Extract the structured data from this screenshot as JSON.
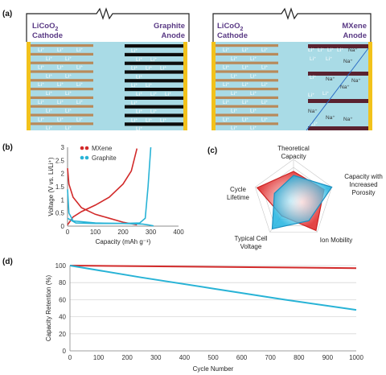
{
  "panels": {
    "a": "(a)",
    "b": "(b)",
    "c": "(c)",
    "d": "(d)"
  },
  "cell_left": {
    "cathode": [
      "LiCoO",
      "2",
      "Cathode"
    ],
    "anode": [
      "Graphite",
      "Anode"
    ]
  },
  "cell_right": {
    "cathode": [
      "LiCoO",
      "2",
      "Cathode"
    ],
    "anode": [
      "MXene",
      "Anode"
    ]
  },
  "ion_labels": {
    "li": "Li⁺",
    "na": "Na⁺"
  },
  "colors": {
    "electrolyte": "#a9dbe6",
    "cathode_layer": "#b88a5a",
    "collector": "#f2c21b",
    "graphite_layer": "#0d0d0d",
    "mxene_layer": "#5a2230",
    "mxene_red": "#d22a2a",
    "graphite_blue": "#28b3d6"
  },
  "chart_b": {
    "type": "line",
    "ylabel": "Voltage (V vs. Li/Li⁺)",
    "xlabel": "Capacity (mAh g⁻¹)",
    "xticks": [
      "0",
      "100",
      "200",
      "300",
      "400"
    ],
    "yticks": [
      "0",
      "0.5",
      "1",
      "1.5",
      "2",
      "2.5",
      "3"
    ],
    "xlim": [
      0,
      400
    ],
    "ylim": [
      0,
      3
    ],
    "legend": [
      {
        "name": "MXene",
        "color": "#d22a2a"
      },
      {
        "name": "Graphite",
        "color": "#28b3d6"
      }
    ]
  },
  "chart_c": {
    "type": "radar",
    "axes": [
      [
        "Theoretical",
        "Capacity"
      ],
      [
        "Capacity with",
        "Increased",
        "Porosity"
      ],
      [
        "Ion Mobility"
      ],
      [
        "Typical Cell",
        "Voltage"
      ],
      [
        "Cycle",
        "Lifetime"
      ]
    ],
    "mxene": [
      0.7,
      0.8,
      0.95,
      0.5,
      0.95
    ],
    "graphite": [
      0.6,
      1.0,
      0.65,
      0.9,
      0.5
    ]
  },
  "chart_d": {
    "type": "line",
    "ylabel": "Capacity Retention (%)",
    "xlabel": "Cycle Number",
    "xticks": [
      "0",
      "100",
      "200",
      "300",
      "400",
      "500",
      "600",
      "700",
      "800",
      "900",
      "1000"
    ],
    "yticks": [
      "0",
      "20",
      "40",
      "60",
      "80",
      "100"
    ],
    "xlim": [
      0,
      1000
    ],
    "ylim": [
      0,
      100
    ],
    "series": [
      {
        "name": "MXene",
        "x": [
          0,
          1000
        ],
        "y": [
          100,
          97
        ],
        "color": "#d22a2a"
      },
      {
        "name": "Graphite",
        "x": [
          0,
          250,
          500,
          750,
          1000
        ],
        "y": [
          100,
          86,
          73,
          60,
          48
        ],
        "color": "#28b3d6"
      }
    ]
  },
  "chart_data": [
    {
      "type": "line",
      "xlabel": "Capacity (mAh g⁻¹)",
      "ylabel": "Voltage (V vs. Li/Li⁺)",
      "xlim": [
        0,
        400
      ],
      "ylim": [
        0,
        3
      ],
      "series": [
        {
          "name": "MXene",
          "x": [
            0,
            20,
            50,
            100,
            150,
            200,
            230,
            250
          ],
          "y": [
            0.05,
            0.35,
            0.55,
            0.8,
            1.1,
            1.6,
            2.1,
            2.95
          ]
        },
        {
          "name": "MXene",
          "x": [
            0,
            5,
            20,
            50,
            100,
            150,
            200,
            250
          ],
          "y": [
            2.2,
            1.6,
            1.1,
            0.7,
            0.45,
            0.3,
            0.15,
            0.05
          ]
        },
        {
          "name": "Graphite",
          "x": [
            0,
            30,
            100,
            200,
            260,
            280,
            290,
            300
          ],
          "y": [
            0.3,
            0.12,
            0.1,
            0.1,
            0.12,
            0.3,
            1.5,
            3.0
          ]
        },
        {
          "name": "Graphite",
          "x": [
            0,
            5,
            20,
            100,
            200,
            270,
            290,
            310
          ],
          "y": [
            1.4,
            0.5,
            0.2,
            0.12,
            0.1,
            0.08,
            0.05,
            0.01
          ]
        }
      ]
    },
    {
      "type": "line",
      "xlabel": "Cycle Number",
      "ylabel": "Capacity Retention (%)",
      "xlim": [
        0,
        1000
      ],
      "ylim": [
        0,
        100
      ],
      "series": [
        {
          "name": "MXene",
          "x": [
            0,
            1000
          ],
          "y": [
            100,
            97
          ]
        },
        {
          "name": "Graphite",
          "x": [
            0,
            250,
            500,
            750,
            1000
          ],
          "y": [
            100,
            86,
            73,
            60,
            48
          ]
        }
      ]
    }
  ]
}
